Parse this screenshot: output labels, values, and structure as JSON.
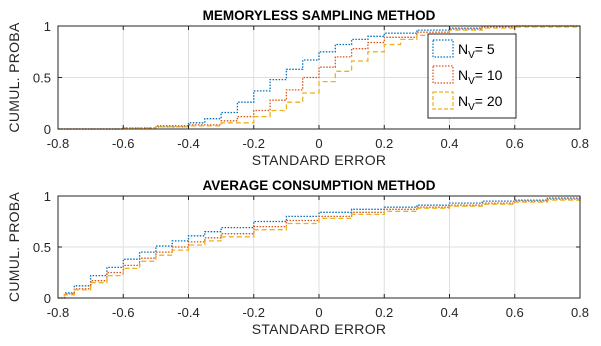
{
  "chart_data": [
    {
      "type": "line",
      "title": "MEMORYLESS SAMPLING METHOD",
      "xlabel": "STANDARD ERROR",
      "ylabel": "CUMUL. PROBA",
      "xlim": [
        -0.8,
        0.8
      ],
      "ylim": [
        0,
        1
      ],
      "xticks": [
        "-0.8",
        "-0.6",
        "-0.4",
        "-0.2",
        "0",
        "0.2",
        "0.4",
        "0.6",
        "0.8"
      ],
      "yticks": [
        "0",
        "0.5",
        "1"
      ],
      "grid": true,
      "legend": "right",
      "series": [
        {
          "name": "N_V = 5",
          "legend_main": "N",
          "legend_sub": "V",
          "legend_suffix": "= 5",
          "color": "#0072BD",
          "style": "dotted",
          "x": [
            -0.8,
            -0.6,
            -0.5,
            -0.4,
            -0.35,
            -0.3,
            -0.25,
            -0.2,
            -0.15,
            -0.1,
            -0.05,
            0,
            0.05,
            0.1,
            0.15,
            0.2,
            0.3,
            0.4,
            0.5,
            0.6,
            0.8
          ],
          "y": [
            0,
            0.01,
            0.03,
            0.06,
            0.1,
            0.16,
            0.26,
            0.37,
            0.48,
            0.58,
            0.67,
            0.75,
            0.82,
            0.87,
            0.9,
            0.93,
            0.96,
            0.98,
            0.99,
            1,
            1
          ]
        },
        {
          "name": "N_V = 10",
          "legend_main": "N",
          "legend_sub": "V",
          "legend_suffix": "= 10",
          "color": "#D95319",
          "style": "dotted",
          "x": [
            -0.8,
            -0.6,
            -0.5,
            -0.4,
            -0.3,
            -0.25,
            -0.2,
            -0.15,
            -0.1,
            -0.05,
            0,
            0.05,
            0.1,
            0.15,
            0.2,
            0.3,
            0.4,
            0.5,
            0.6,
            0.8
          ],
          "y": [
            0,
            0.01,
            0.02,
            0.04,
            0.08,
            0.12,
            0.18,
            0.28,
            0.38,
            0.5,
            0.6,
            0.7,
            0.78,
            0.84,
            0.89,
            0.94,
            0.97,
            0.99,
            1,
            1
          ]
        },
        {
          "name": "N_V = 20",
          "legend_main": "N",
          "legend_sub": "V",
          "legend_suffix": "= 20",
          "color": "#EDB120",
          "style": "dashed",
          "x": [
            -0.8,
            -0.6,
            -0.5,
            -0.4,
            -0.3,
            -0.2,
            -0.15,
            -0.1,
            -0.05,
            0,
            0.05,
            0.1,
            0.15,
            0.2,
            0.25,
            0.3,
            0.4,
            0.5,
            0.6,
            0.8
          ],
          "y": [
            0,
            0.01,
            0.02,
            0.03,
            0.06,
            0.12,
            0.18,
            0.26,
            0.35,
            0.46,
            0.56,
            0.66,
            0.75,
            0.82,
            0.87,
            0.91,
            0.96,
            0.98,
            0.99,
            1
          ]
        }
      ]
    },
    {
      "type": "line",
      "title": "AVERAGE CONSUMPTION METHOD",
      "xlabel": "STANDARD ERROR",
      "ylabel": "CUMUL. PROBA",
      "xlim": [
        -0.8,
        0.8
      ],
      "ylim": [
        0,
        1
      ],
      "xticks": [
        "-0.8",
        "-0.6",
        "-0.4",
        "-0.2",
        "0",
        "0.2",
        "0.4",
        "0.6",
        "0.8"
      ],
      "yticks": [
        "0",
        "0.5",
        "1"
      ],
      "grid": true,
      "series": [
        {
          "name": "N_V = 5",
          "color": "#0072BD",
          "style": "dotted",
          "x": [
            -0.8,
            -0.78,
            -0.75,
            -0.7,
            -0.65,
            -0.6,
            -0.55,
            -0.5,
            -0.45,
            -0.4,
            -0.35,
            -0.3,
            -0.2,
            -0.1,
            0,
            0.1,
            0.2,
            0.3,
            0.4,
            0.5,
            0.6,
            0.7,
            0.8
          ],
          "y": [
            0,
            0.05,
            0.12,
            0.22,
            0.3,
            0.38,
            0.45,
            0.51,
            0.56,
            0.61,
            0.65,
            0.69,
            0.75,
            0.8,
            0.84,
            0.87,
            0.89,
            0.91,
            0.93,
            0.95,
            0.96,
            0.98,
            1
          ]
        },
        {
          "name": "N_V = 10",
          "color": "#D95319",
          "style": "dotted",
          "x": [
            -0.8,
            -0.78,
            -0.75,
            -0.7,
            -0.65,
            -0.6,
            -0.55,
            -0.5,
            -0.45,
            -0.4,
            -0.35,
            -0.3,
            -0.2,
            -0.1,
            0,
            0.1,
            0.2,
            0.3,
            0.4,
            0.5,
            0.6,
            0.7,
            0.8
          ],
          "y": [
            0,
            0.04,
            0.09,
            0.17,
            0.25,
            0.32,
            0.39,
            0.45,
            0.5,
            0.55,
            0.59,
            0.63,
            0.7,
            0.76,
            0.8,
            0.84,
            0.87,
            0.89,
            0.91,
            0.93,
            0.95,
            0.97,
            0.99
          ]
        },
        {
          "name": "N_V = 20",
          "color": "#EDB120",
          "style": "dashed",
          "x": [
            -0.8,
            -0.78,
            -0.75,
            -0.7,
            -0.65,
            -0.6,
            -0.55,
            -0.5,
            -0.45,
            -0.4,
            -0.35,
            -0.3,
            -0.2,
            -0.1,
            0,
            0.1,
            0.2,
            0.3,
            0.4,
            0.5,
            0.6,
            0.7,
            0.8
          ],
          "y": [
            0,
            0.03,
            0.08,
            0.15,
            0.22,
            0.29,
            0.36,
            0.42,
            0.47,
            0.52,
            0.56,
            0.6,
            0.67,
            0.73,
            0.78,
            0.82,
            0.85,
            0.88,
            0.9,
            0.92,
            0.94,
            0.96,
            0.98
          ]
        }
      ]
    }
  ]
}
